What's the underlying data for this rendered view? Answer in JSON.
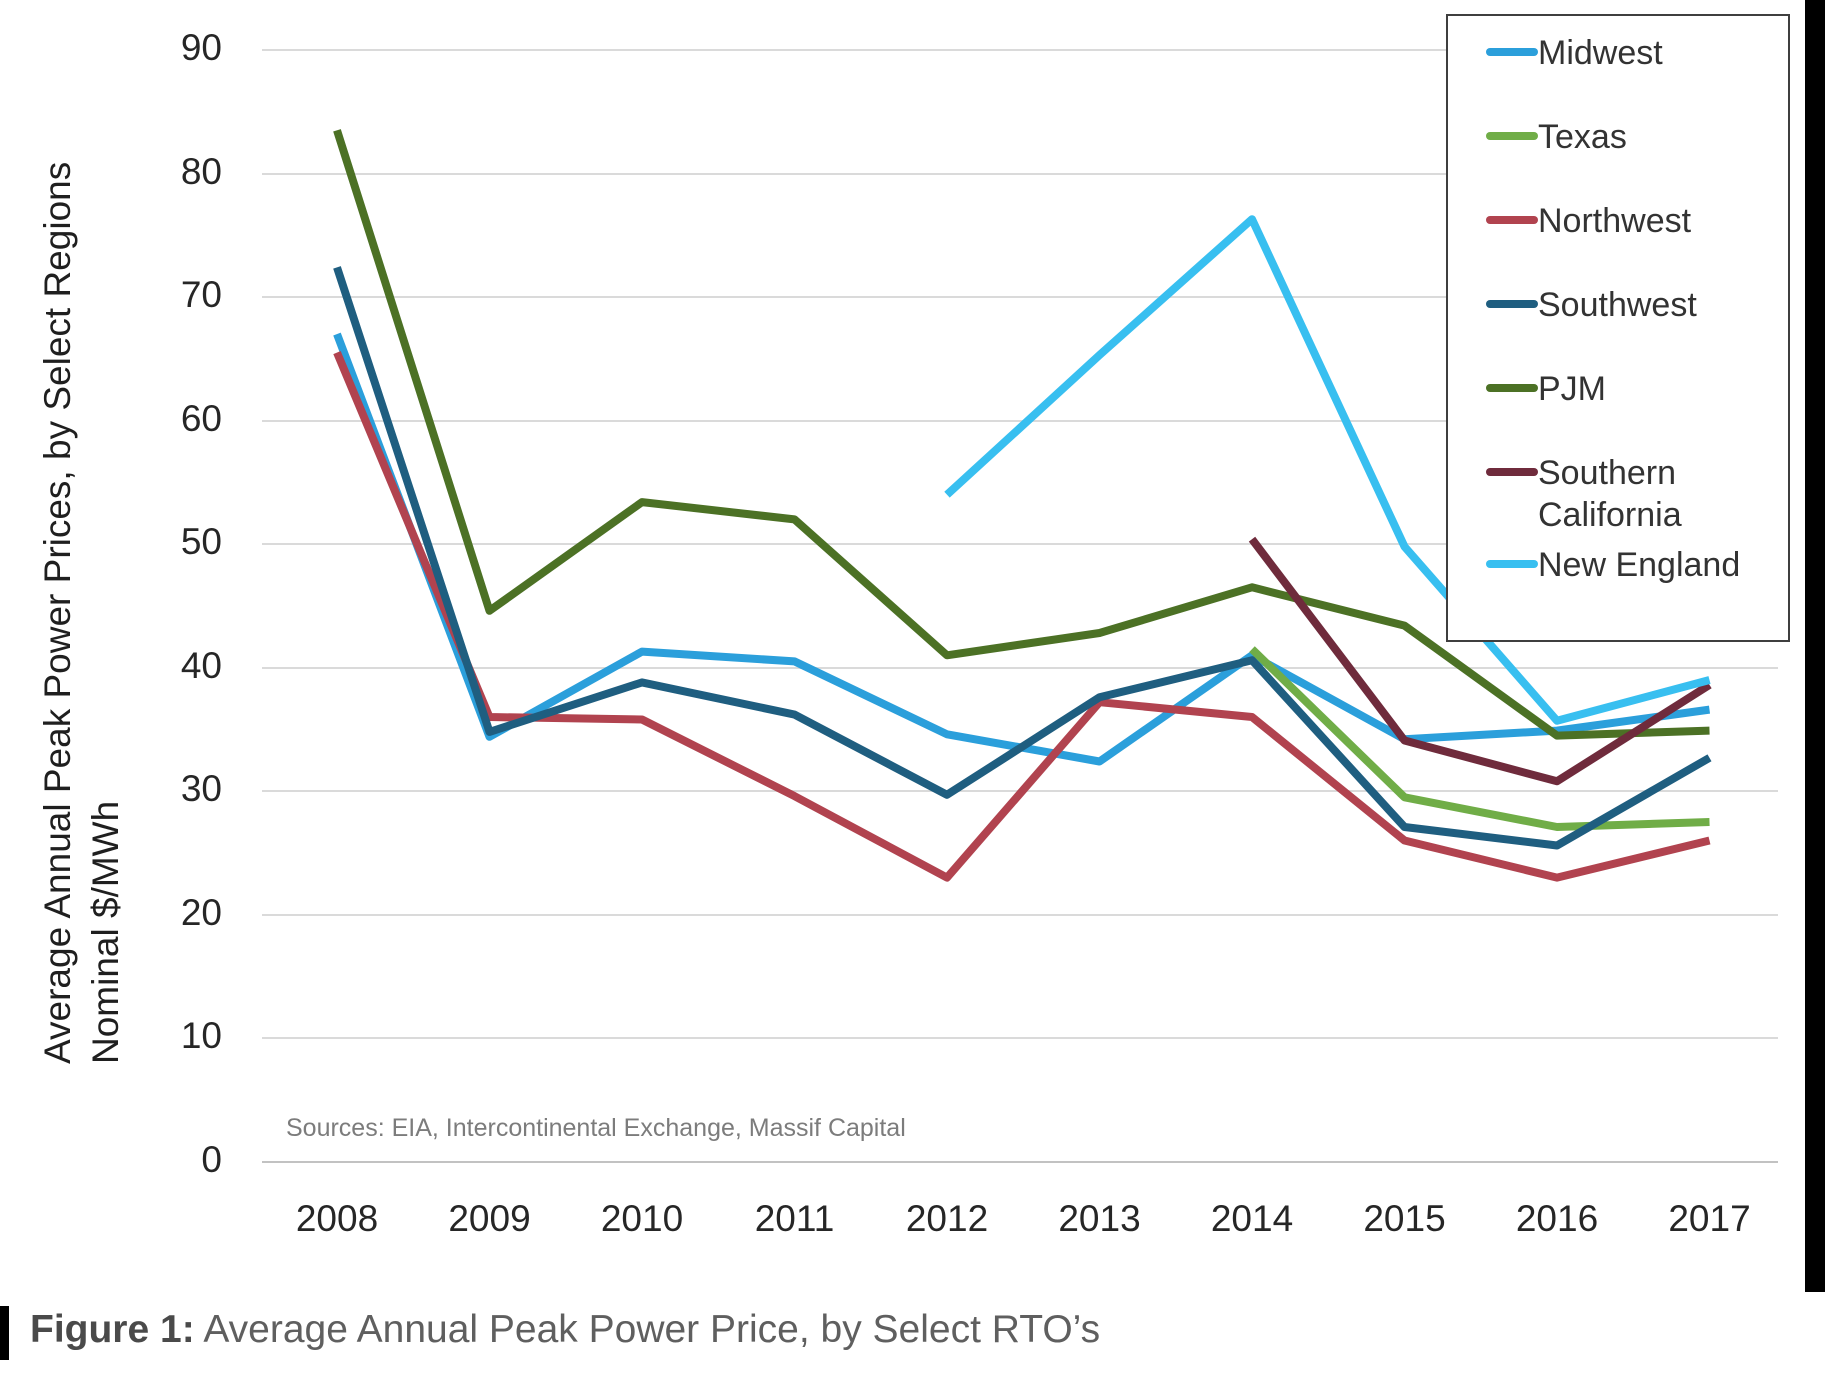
{
  "figure": {
    "caption_prefix": "Figure 1:",
    "caption_text": " Average Annual Peak Power Price, by Select RTO’s"
  },
  "sources_note": "Sources: EIA, Intercontinental Exchange, Massif Capital",
  "y_axis": {
    "title_line1": "Average Annual Peak Power Prices, by Select Regions",
    "title_line2": "Nominal $/MWh",
    "ticks": [
      90,
      80,
      70,
      60,
      50,
      40,
      30,
      20,
      10,
      0
    ],
    "min": 0,
    "max": 90
  },
  "x_axis": {
    "ticks": [
      "2008",
      "2009",
      "2010",
      "2011",
      "2012",
      "2013",
      "2014",
      "2015",
      "2016",
      "2017"
    ]
  },
  "chart_data": {
    "type": "line",
    "title": "",
    "xlabel": "",
    "ylabel": "Average Annual Peak Power Prices, by Select Regions Nominal $/MWh",
    "ylim": [
      0,
      90
    ],
    "grid": "horizontal",
    "legend_position": "top-right",
    "categories": [
      2008,
      2009,
      2010,
      2011,
      2012,
      2013,
      2014,
      2015,
      2016,
      2017
    ],
    "series": [
      {
        "name": "Midwest",
        "color": "#2B9FDB",
        "values": [
          67.0,
          34.4,
          41.3,
          40.5,
          34.6,
          32.4,
          41.0,
          34.2,
          34.9,
          36.6
        ]
      },
      {
        "name": "Texas",
        "color": "#70AD47",
        "values": [
          null,
          null,
          null,
          null,
          null,
          null,
          41.5,
          29.5,
          27.1,
          27.5
        ]
      },
      {
        "name": "Northwest",
        "color": "#B1434F",
        "values": [
          65.5,
          36.0,
          35.8,
          29.6,
          23.0,
          37.2,
          36.0,
          26.0,
          23.0,
          26.0
        ]
      },
      {
        "name": "Southwest",
        "color": "#1F5E80",
        "values": [
          72.4,
          34.8,
          38.8,
          36.2,
          29.7,
          37.6,
          40.6,
          27.1,
          25.6,
          32.7
        ]
      },
      {
        "name": "PJM",
        "color": "#4C7125",
        "values": [
          83.5,
          44.6,
          53.4,
          52.0,
          41.0,
          42.8,
          46.5,
          43.4,
          34.5,
          34.9
        ]
      },
      {
        "name": "Southern California",
        "color": "#6F2B3C",
        "values": [
          null,
          null,
          null,
          null,
          null,
          null,
          50.4,
          34.1,
          30.8,
          38.6
        ]
      },
      {
        "name": "New England",
        "color": "#38BFF0",
        "values": [
          null,
          null,
          null,
          null,
          54.0,
          65.3,
          76.3,
          49.8,
          35.7,
          39.0
        ]
      }
    ]
  }
}
